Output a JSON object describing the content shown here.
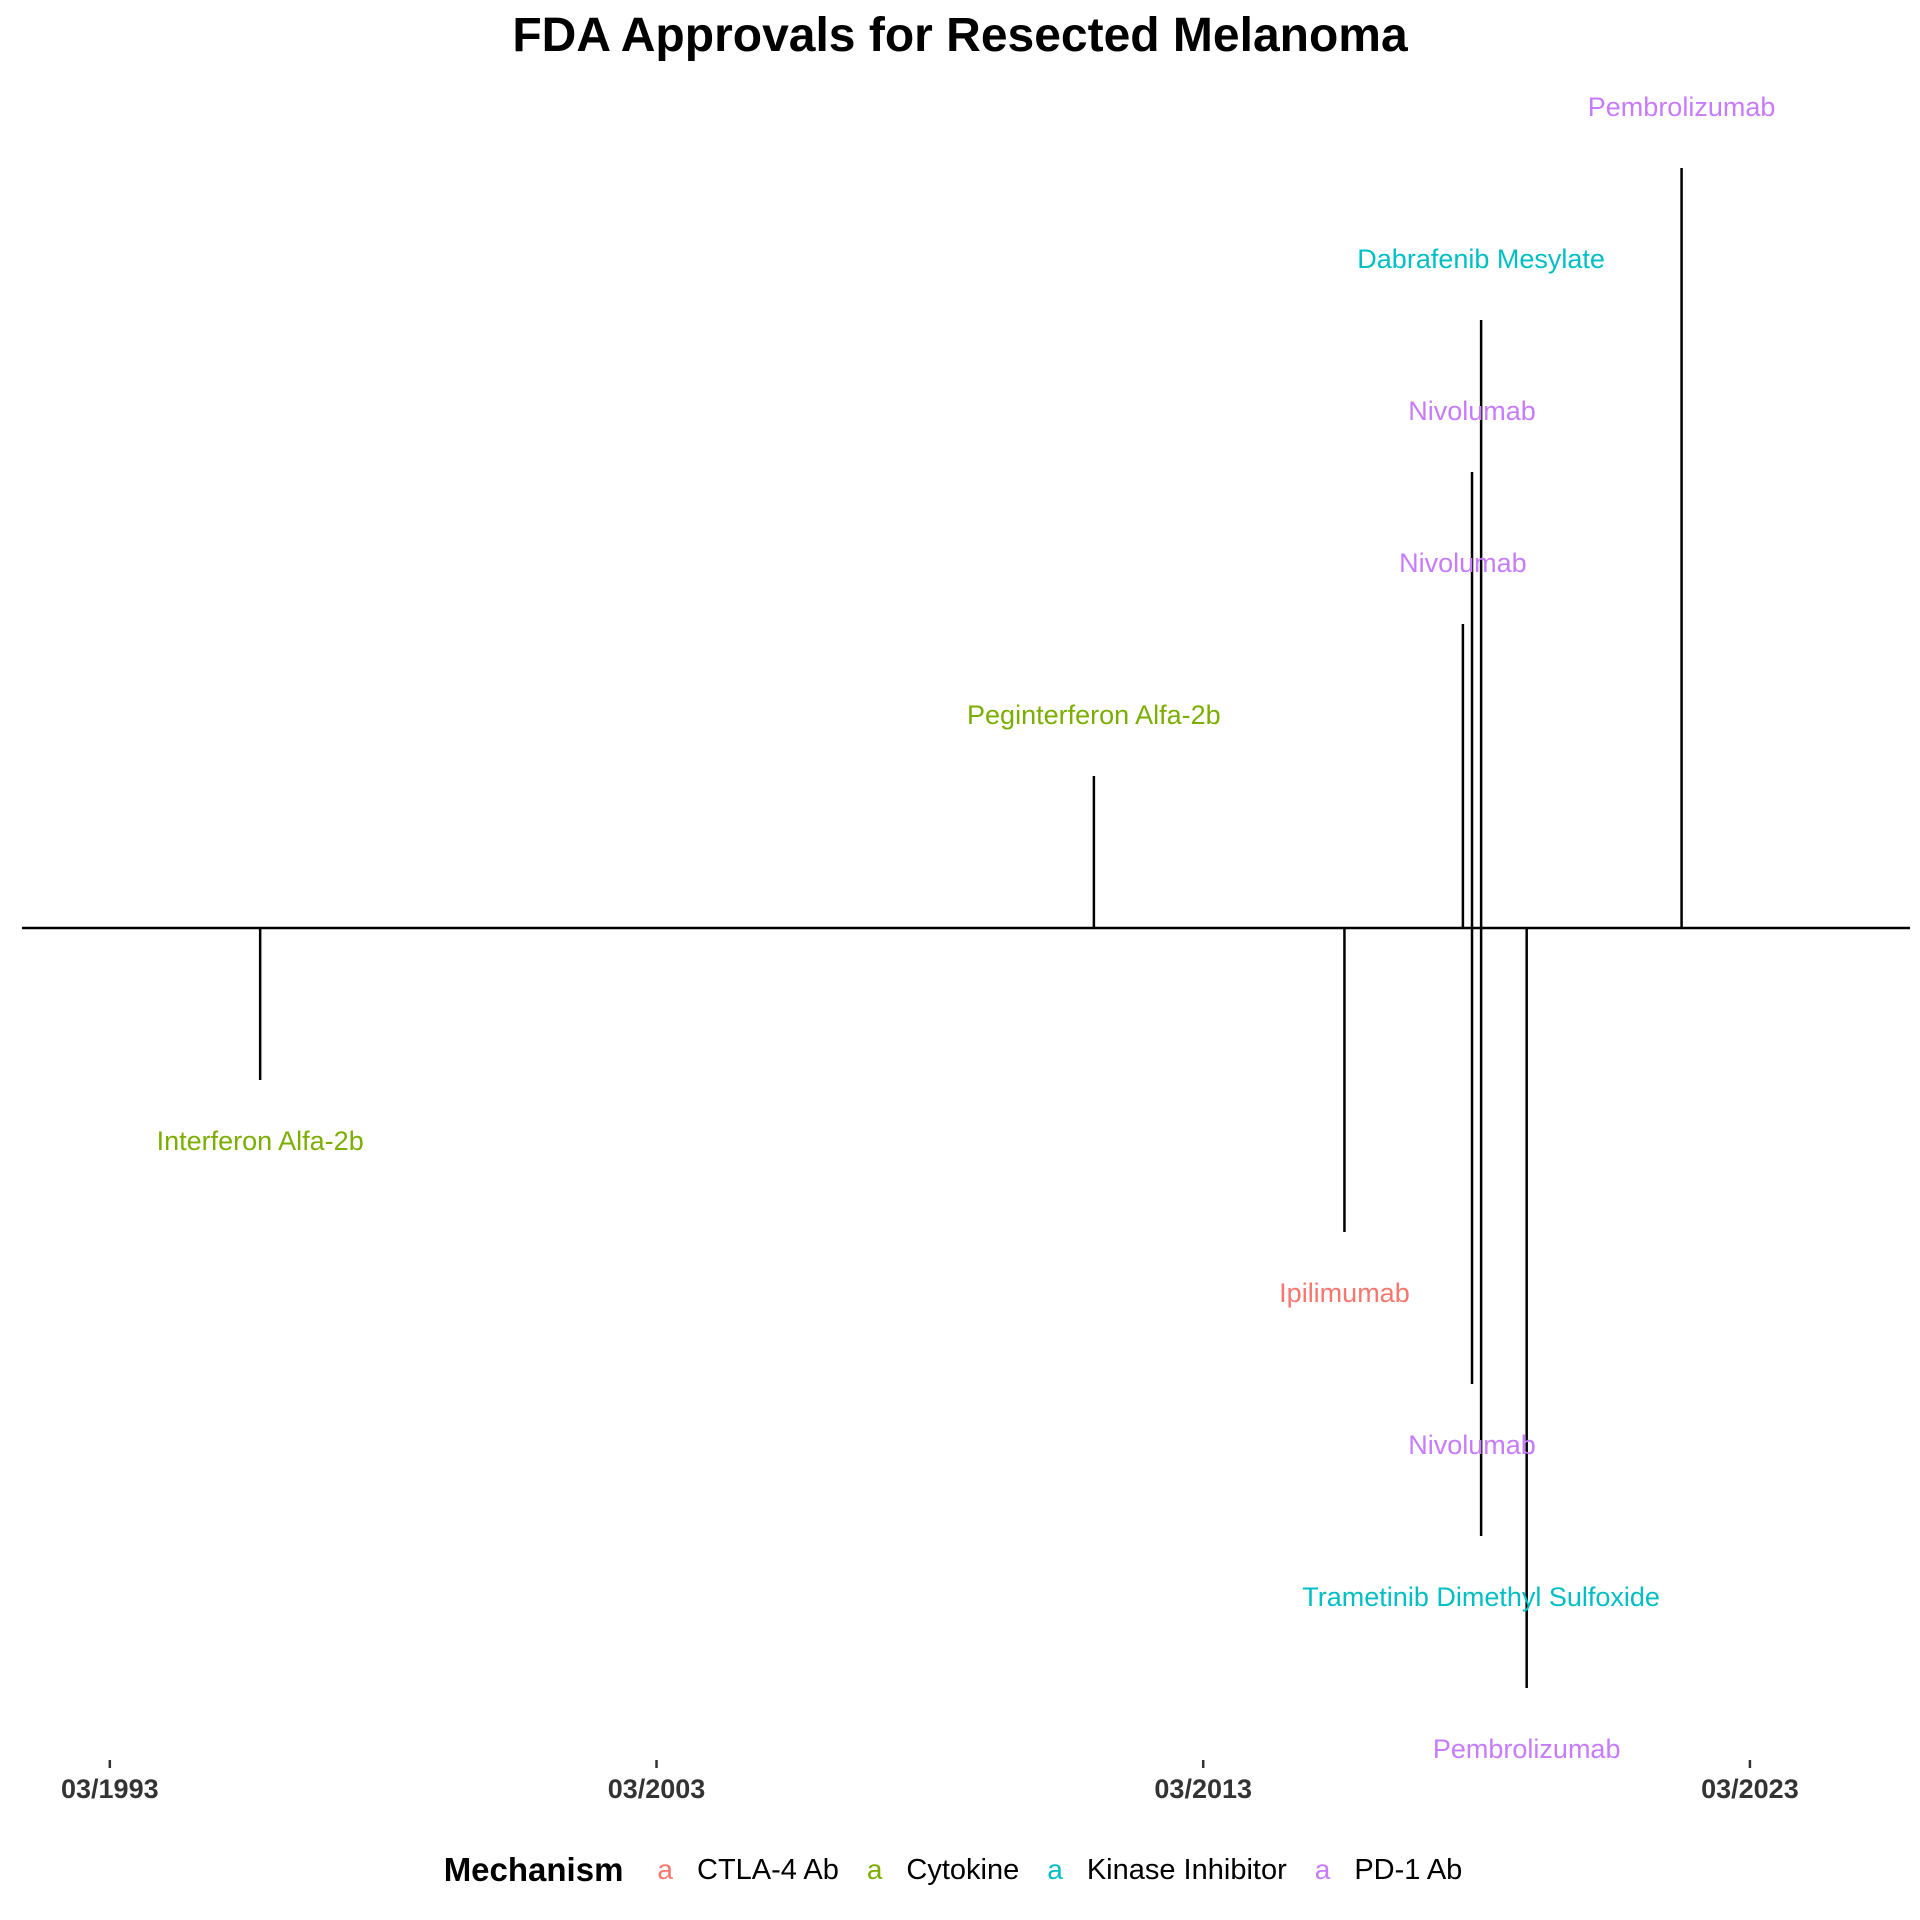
{
  "chart_data": {
    "type": "timeline",
    "title": "FDA Approvals for Resected Melanoma",
    "x_ticks": [
      "03/1993",
      "03/2003",
      "03/2013",
      "03/2023"
    ],
    "legend": {
      "title": "Mechanism",
      "key_glyph": "a",
      "entries": [
        {
          "name": "CTLA-4 Ab",
          "color": "#F8766D"
        },
        {
          "name": "Cytokine",
          "color": "#7CAE00"
        },
        {
          "name": "Kinase Inhibitor",
          "color": "#00BFC4"
        },
        {
          "name": "PD-1 Ab",
          "color": "#C77CFF"
        }
      ]
    },
    "events": [
      {
        "drug": "Interferon Alfa-2b",
        "mechanism": "Cytokine",
        "date": "1995-12",
        "level": -1
      },
      {
        "drug": "Peginterferon Alfa-2b",
        "mechanism": "Cytokine",
        "date": "2011-03",
        "level": 1
      },
      {
        "drug": "Ipilimumab",
        "mechanism": "CTLA-4 Ab",
        "date": "2015-10",
        "level": -2
      },
      {
        "drug": "Nivolumab",
        "mechanism": "PD-1 Ab",
        "date": "2017-12",
        "level": 2
      },
      {
        "drug": "Nivolumab",
        "mechanism": "PD-1 Ab",
        "date": "2018-02",
        "level": 3
      },
      {
        "drug": "Nivolumab",
        "mechanism": "PD-1 Ab",
        "date": "2018-02",
        "level": -3
      },
      {
        "drug": "Dabrafenib Mesylate",
        "mechanism": "Kinase Inhibitor",
        "date": "2018-04",
        "level": 4
      },
      {
        "drug": "Trametinib Dimethyl Sulfoxide",
        "mechanism": "Kinase Inhibitor",
        "date": "2018-04",
        "level": -4
      },
      {
        "drug": "Pembrolizumab",
        "mechanism": "PD-1 Ab",
        "date": "2019-02",
        "level": -5
      },
      {
        "drug": "Pembrolizumab",
        "mechanism": "PD-1 Ab",
        "date": "2021-12",
        "level": 5
      }
    ]
  }
}
